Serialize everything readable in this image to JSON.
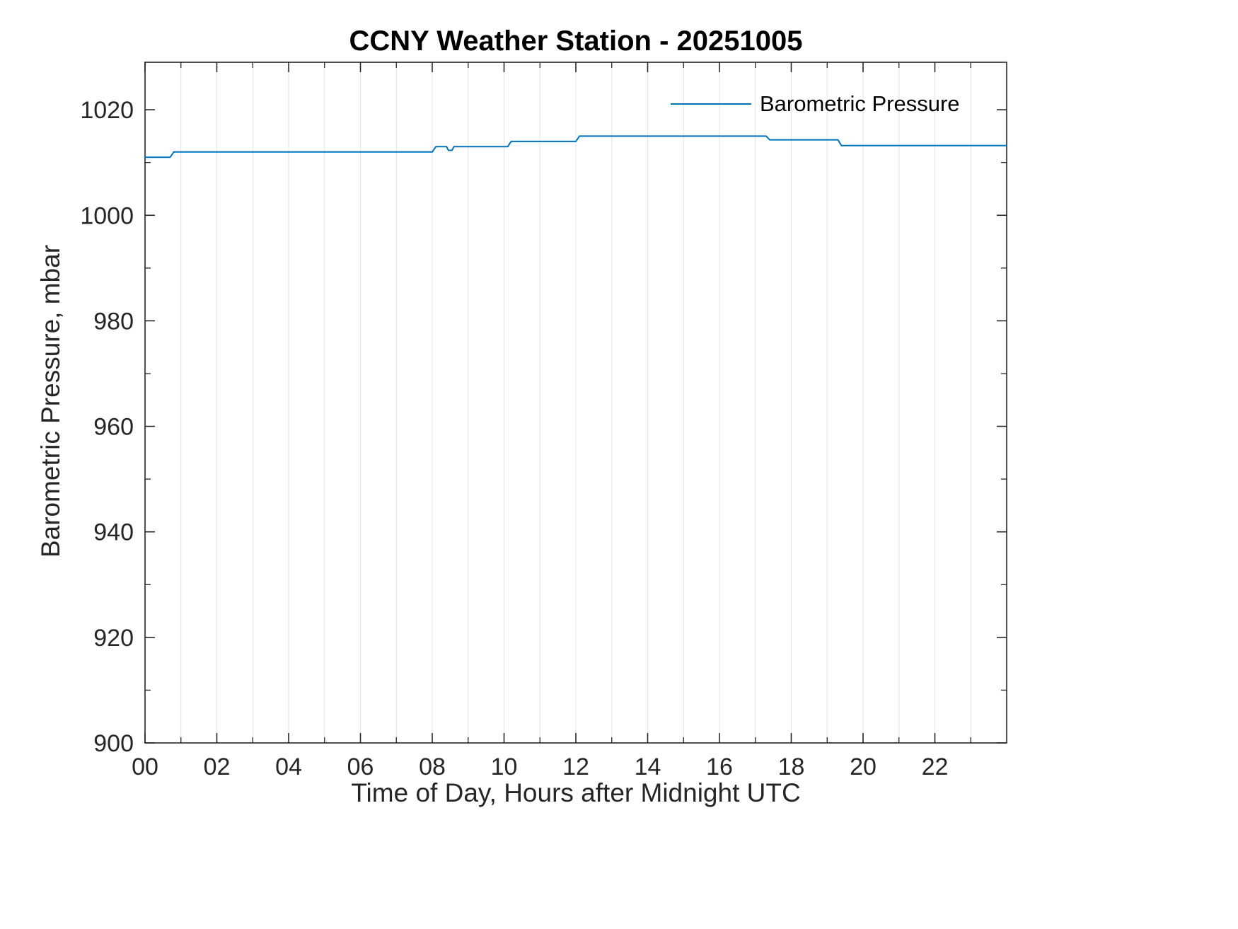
{
  "figure": {
    "background": "#ffffff",
    "axes_color": "#262626",
    "grid_color": "#e3e3e3"
  },
  "chart_data": {
    "type": "line",
    "title": "CCNY Weather Station - 20251005",
    "xlabel": "Time of Day, Hours after Midnight UTC",
    "ylabel": "Barometric Pressure, mbar",
    "xlim": [
      0,
      24
    ],
    "ylim": [
      900,
      1029
    ],
    "xticks": [
      0,
      2,
      4,
      6,
      8,
      10,
      12,
      14,
      16,
      18,
      20,
      22
    ],
    "xtick_labels": [
      "00",
      "02",
      "04",
      "06",
      "08",
      "10",
      "12",
      "14",
      "16",
      "18",
      "20",
      "22"
    ],
    "yticks": [
      900,
      920,
      940,
      960,
      980,
      1000,
      1020
    ],
    "ytick_labels": [
      "900",
      "920",
      "940",
      "960",
      "980",
      "1000",
      "1020"
    ],
    "minor_x_step": 1,
    "minor_y_step": 10,
    "grid": "vertical-every-hour",
    "legend": {
      "position": "top-right",
      "entries": [
        {
          "label": "Barometric Pressure",
          "color": "#0072BD"
        }
      ]
    },
    "series": [
      {
        "name": "Barometric Pressure",
        "color": "#0072BD",
        "points": [
          [
            0,
            1011
          ],
          [
            0.7,
            1011
          ],
          [
            0.8,
            1012
          ],
          [
            8.0,
            1012
          ],
          [
            8.1,
            1013
          ],
          [
            8.4,
            1013
          ],
          [
            8.45,
            1012.3
          ],
          [
            8.55,
            1012.3
          ],
          [
            8.6,
            1013
          ],
          [
            10.1,
            1013
          ],
          [
            10.2,
            1014
          ],
          [
            12.0,
            1014
          ],
          [
            12.1,
            1015
          ],
          [
            17.3,
            1015
          ],
          [
            17.4,
            1014.3
          ],
          [
            19.3,
            1014.3
          ],
          [
            19.4,
            1013.2
          ],
          [
            24,
            1013.2
          ]
        ]
      }
    ]
  }
}
